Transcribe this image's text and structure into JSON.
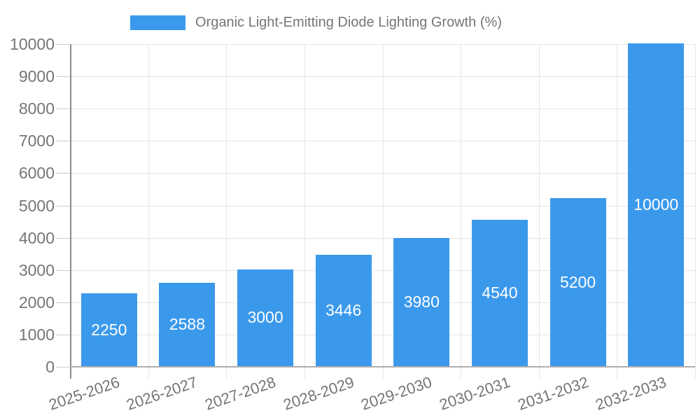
{
  "legend": {
    "label": "Organic Light-Emitting Diode Lighting Growth (%)"
  },
  "chart_data": {
    "type": "bar",
    "title": "Organic Light-Emitting Diode Lighting Growth (%)",
    "categories": [
      "2025-2026",
      "2026-2027",
      "2027-2028",
      "2028-2029",
      "2029-2030",
      "2030-2031",
      "2031-2032",
      "2032-2033"
    ],
    "values": [
      2250,
      2588,
      3000,
      3446,
      3980,
      4540,
      5200,
      10000
    ],
    "value_labels": [
      "2250",
      "2588",
      "3000",
      "3446",
      "3980",
      "4540",
      "5200",
      "10000"
    ],
    "xlabel": "",
    "ylabel": "",
    "ylim": [
      0,
      10000
    ],
    "ytick_interval": 1000,
    "ytick_labels": [
      "0",
      "1000",
      "2000",
      "3000",
      "4000",
      "5000",
      "6000",
      "7000",
      "8000",
      "9000",
      "10000"
    ],
    "grid": "horizontal and vertical gridlines on",
    "legend_position": "top",
    "value_label_position": "centered inside bar",
    "colors": {
      "bar": "#3B99EC",
      "value_label": "#FFFFFF",
      "grid": "#E6E6E6",
      "y_axis": "#8A8A8A",
      "baseline": "#AFAFAF",
      "tick": "#CCCCCC",
      "axis_text": "#757575",
      "background": "#FFFFFF"
    }
  }
}
